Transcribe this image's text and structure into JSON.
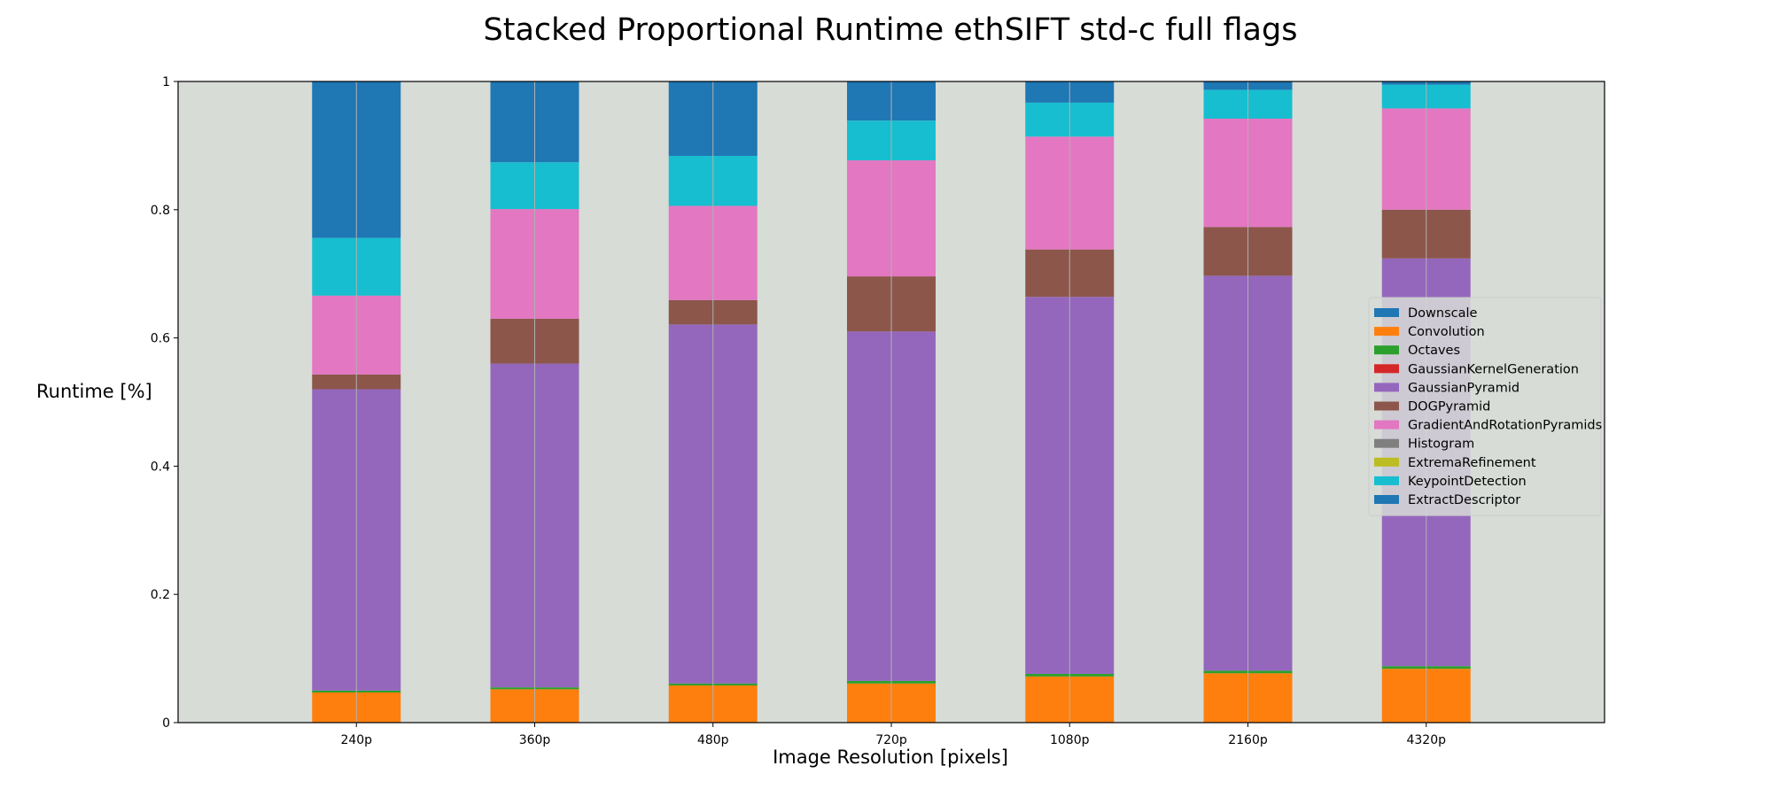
{
  "chart_data": {
    "type": "bar",
    "stacked": true,
    "title": "Stacked Proportional Runtime ethSIFT std-c full flags",
    "xlabel": "Image Resolution [pixels]",
    "ylabel": "Runtime [%]",
    "ylim": [
      0,
      1
    ],
    "yticks": [
      "0",
      "0.2",
      "0.4",
      "0.6",
      "0.8",
      "1"
    ],
    "ytick_values": [
      0,
      0.2,
      0.4,
      0.6,
      0.8,
      1
    ],
    "categories": [
      "240p",
      "360p",
      "480p",
      "720p",
      "1080p",
      "2160p",
      "4320p"
    ],
    "grid": "vertical lines at category centers",
    "legend_placement": "center-right",
    "plot_background": "#d7dcd7",
    "series": [
      {
        "name": "Downscale",
        "color": "#1f77b4",
        "values": [
          0.0,
          0.0,
          0.0,
          0.0,
          0.0,
          0.0,
          0.0
        ]
      },
      {
        "name": "Convolution",
        "color": "#ff7f0e",
        "values": [
          0.047,
          0.052,
          0.058,
          0.061,
          0.072,
          0.077,
          0.084
        ]
      },
      {
        "name": "Octaves",
        "color": "#2ca02c",
        "values": [
          0.003,
          0.003,
          0.003,
          0.004,
          0.004,
          0.004,
          0.004
        ]
      },
      {
        "name": "GaussianKernelGeneration",
        "color": "#d62728",
        "values": [
          0.0,
          0.0,
          0.0,
          0.0,
          0.0,
          0.0,
          0.0
        ]
      },
      {
        "name": "GaussianPyramid",
        "color": "#9467bd",
        "values": [
          0.47,
          0.505,
          0.56,
          0.545,
          0.588,
          0.616,
          0.636
        ]
      },
      {
        "name": "DOGPyramid",
        "color": "#8c564b",
        "values": [
          0.023,
          0.07,
          0.038,
          0.086,
          0.074,
          0.076,
          0.076
        ]
      },
      {
        "name": "GradientAndRotationPyramids",
        "color": "#e377c2",
        "values": [
          0.123,
          0.171,
          0.147,
          0.181,
          0.176,
          0.169,
          0.158
        ]
      },
      {
        "name": "Histogram",
        "color": "#7f7f7f",
        "values": [
          0.0,
          0.0,
          0.0,
          0.0,
          0.0,
          0.0,
          0.0
        ]
      },
      {
        "name": "ExtremaRefinement",
        "color": "#bcbd22",
        "values": [
          0.0,
          0.0,
          0.0,
          0.0,
          0.0,
          0.0,
          0.0
        ]
      },
      {
        "name": "KeypointDetection",
        "color": "#17becf",
        "values": [
          0.09,
          0.073,
          0.078,
          0.062,
          0.053,
          0.045,
          0.037
        ]
      },
      {
        "name": "ExtractDescriptor",
        "color": "#1f77b4",
        "values": [
          0.244,
          0.126,
          0.116,
          0.061,
          0.033,
          0.013,
          0.005
        ]
      }
    ]
  }
}
